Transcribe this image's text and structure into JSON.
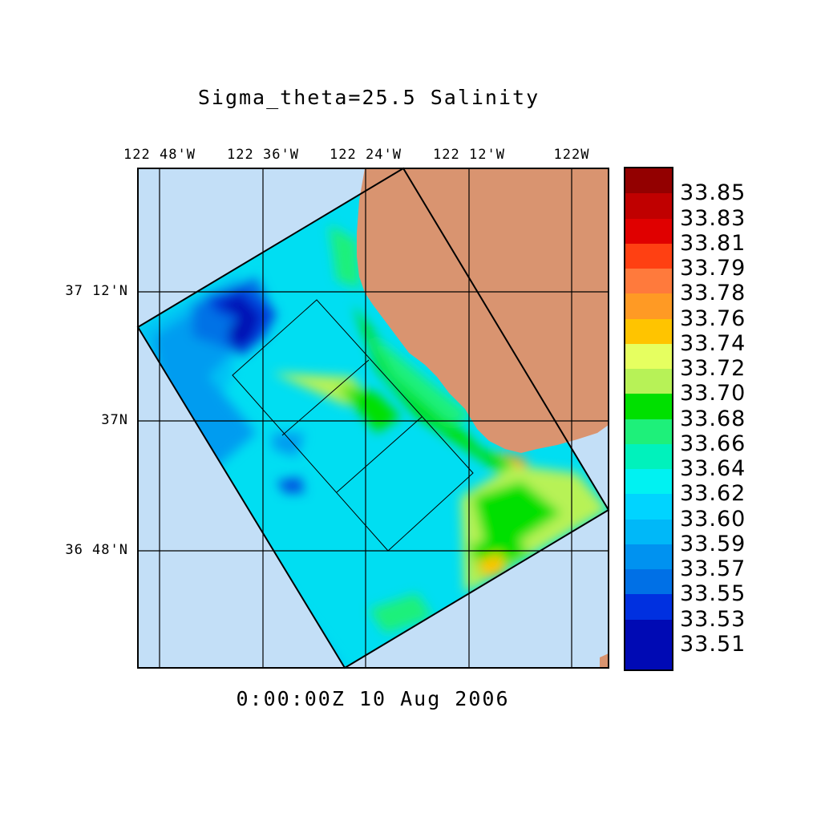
{
  "title": "Sigma_theta=25.5 Salinity",
  "footer": "0:00:00Z  10 Aug 2006",
  "map": {
    "lon_ticks": [
      "122 48'W",
      "122 36'W",
      "122 24'W",
      "122 12'W",
      "122W"
    ],
    "lat_ticks": [
      "37 12'N",
      "37N",
      "36 48'N"
    ],
    "colors": {
      "ocean": "#c3dff7",
      "land": "#d99470",
      "grid": "#000000"
    }
  },
  "colorbar": {
    "labels": [
      "33.85",
      "33.83",
      "33.81",
      "33.79",
      "33.78",
      "33.76",
      "33.74",
      "33.72",
      "33.70",
      "33.68",
      "33.66",
      "33.64",
      "33.62",
      "33.60",
      "33.59",
      "33.57",
      "33.55",
      "33.53",
      "33.51"
    ],
    "colors": [
      "#930000",
      "#c00000",
      "#e00000",
      "#ff4012",
      "#ff7a3c",
      "#ff9a24",
      "#ffc400",
      "#e6ff60",
      "#b7f257",
      "#00e000",
      "#1ef07a",
      "#00f2bc",
      "#00f2f2",
      "#00d4ff",
      "#00b8f8",
      "#0092f0",
      "#0070e6",
      "#0030e0",
      "#000ab4"
    ]
  }
}
